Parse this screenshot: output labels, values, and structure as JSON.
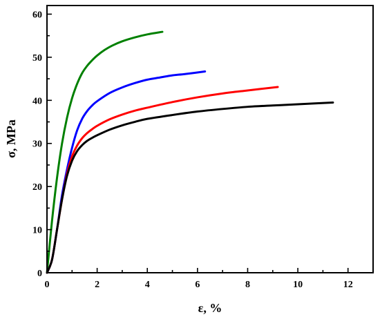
{
  "chart_data": {
    "type": "line",
    "title": "",
    "xlabel": "ε, %",
    "ylabel": "σ, MPa",
    "xlim": [
      0,
      13
    ],
    "ylim": [
      0,
      62
    ],
    "x_ticks": [
      0,
      2,
      4,
      6,
      8,
      10,
      12
    ],
    "y_ticks": [
      0,
      10,
      20,
      30,
      40,
      50,
      60
    ],
    "grid": false,
    "legend": "none",
    "series": [
      {
        "color": "#008000",
        "x": [
          0,
          0.2,
          0.4,
          0.6,
          0.8,
          1.0,
          1.2,
          1.4,
          1.6,
          1.8,
          2.0,
          2.3,
          2.6,
          3.0,
          3.5,
          4.0,
          4.6
        ],
        "y": [
          0,
          12,
          22,
          30,
          36,
          40.5,
          43.8,
          46.3,
          48.0,
          49.3,
          50.4,
          51.7,
          52.7,
          53.7,
          54.6,
          55.3,
          55.9
        ]
      },
      {
        "color": "#0000ff",
        "x": [
          0,
          0.2,
          0.4,
          0.6,
          0.8,
          1.0,
          1.2,
          1.4,
          1.6,
          1.8,
          2.0,
          2.5,
          3.0,
          3.5,
          4.0,
          4.5,
          5.0,
          5.5,
          6.3
        ],
        "y": [
          0,
          3,
          10,
          18,
          24,
          29,
          33,
          35.7,
          37.5,
          38.8,
          39.8,
          41.7,
          43.0,
          44.0,
          44.8,
          45.3,
          45.8,
          46.1,
          46.7
        ]
      },
      {
        "color": "#ff0000",
        "x": [
          0,
          0.2,
          0.4,
          0.6,
          0.8,
          1.0,
          1.2,
          1.4,
          1.6,
          1.8,
          2.0,
          2.5,
          3.0,
          3.5,
          4.0,
          5.0,
          6.0,
          7.0,
          8.0,
          9.2
        ],
        "y": [
          0,
          3,
          10,
          17,
          23,
          27,
          29.5,
          31.2,
          32.4,
          33.3,
          34.1,
          35.6,
          36.7,
          37.6,
          38.3,
          39.6,
          40.7,
          41.6,
          42.3,
          43.1
        ]
      },
      {
        "color": "#000000",
        "x": [
          0,
          0.2,
          0.4,
          0.6,
          0.8,
          1.0,
          1.2,
          1.4,
          1.6,
          1.8,
          2.0,
          2.5,
          3.0,
          3.5,
          4.0,
          5.0,
          6.0,
          7.0,
          8.0,
          9.0,
          10.0,
          11.4
        ],
        "y": [
          0,
          3,
          10,
          17,
          22.5,
          26,
          28.2,
          29.6,
          30.6,
          31.3,
          31.9,
          33.2,
          34.2,
          35.0,
          35.7,
          36.6,
          37.4,
          38.0,
          38.5,
          38.8,
          39.1,
          39.5
        ]
      }
    ]
  }
}
